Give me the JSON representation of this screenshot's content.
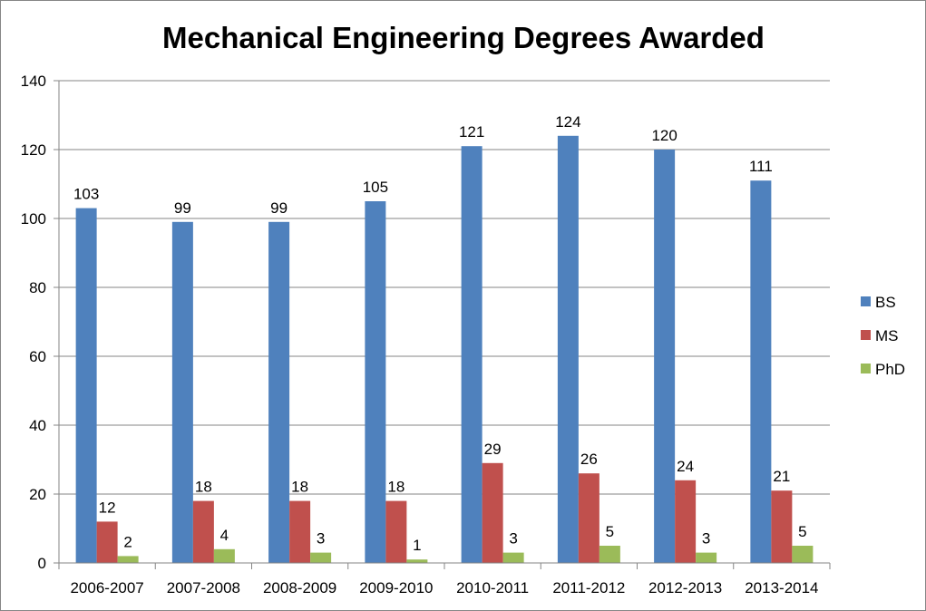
{
  "chart_data": {
    "type": "bar",
    "title": "Mechanical Engineering Degrees Awarded",
    "xlabel": "",
    "ylabel": "",
    "categories": [
      "2006-2007",
      "2007-2008",
      "2008-2009",
      "2009-2010",
      "2010-2011",
      "2011-2012",
      "2012-2013",
      "2013-2014"
    ],
    "series": [
      {
        "name": "BS",
        "color": "#4F81BD",
        "values": [
          103,
          99,
          99,
          105,
          121,
          124,
          120,
          111
        ]
      },
      {
        "name": "MS",
        "color": "#C0504D",
        "values": [
          12,
          18,
          18,
          18,
          29,
          26,
          24,
          21
        ]
      },
      {
        "name": "PhD",
        "color": "#9BBB59",
        "values": [
          2,
          4,
          3,
          1,
          3,
          5,
          3,
          5
        ]
      }
    ],
    "ylim": [
      0,
      140
    ],
    "yticks": [
      "0",
      "20",
      "40",
      "60",
      "80",
      "100",
      "120",
      "140"
    ],
    "grid": true,
    "legend": "right",
    "data_labels": true
  }
}
